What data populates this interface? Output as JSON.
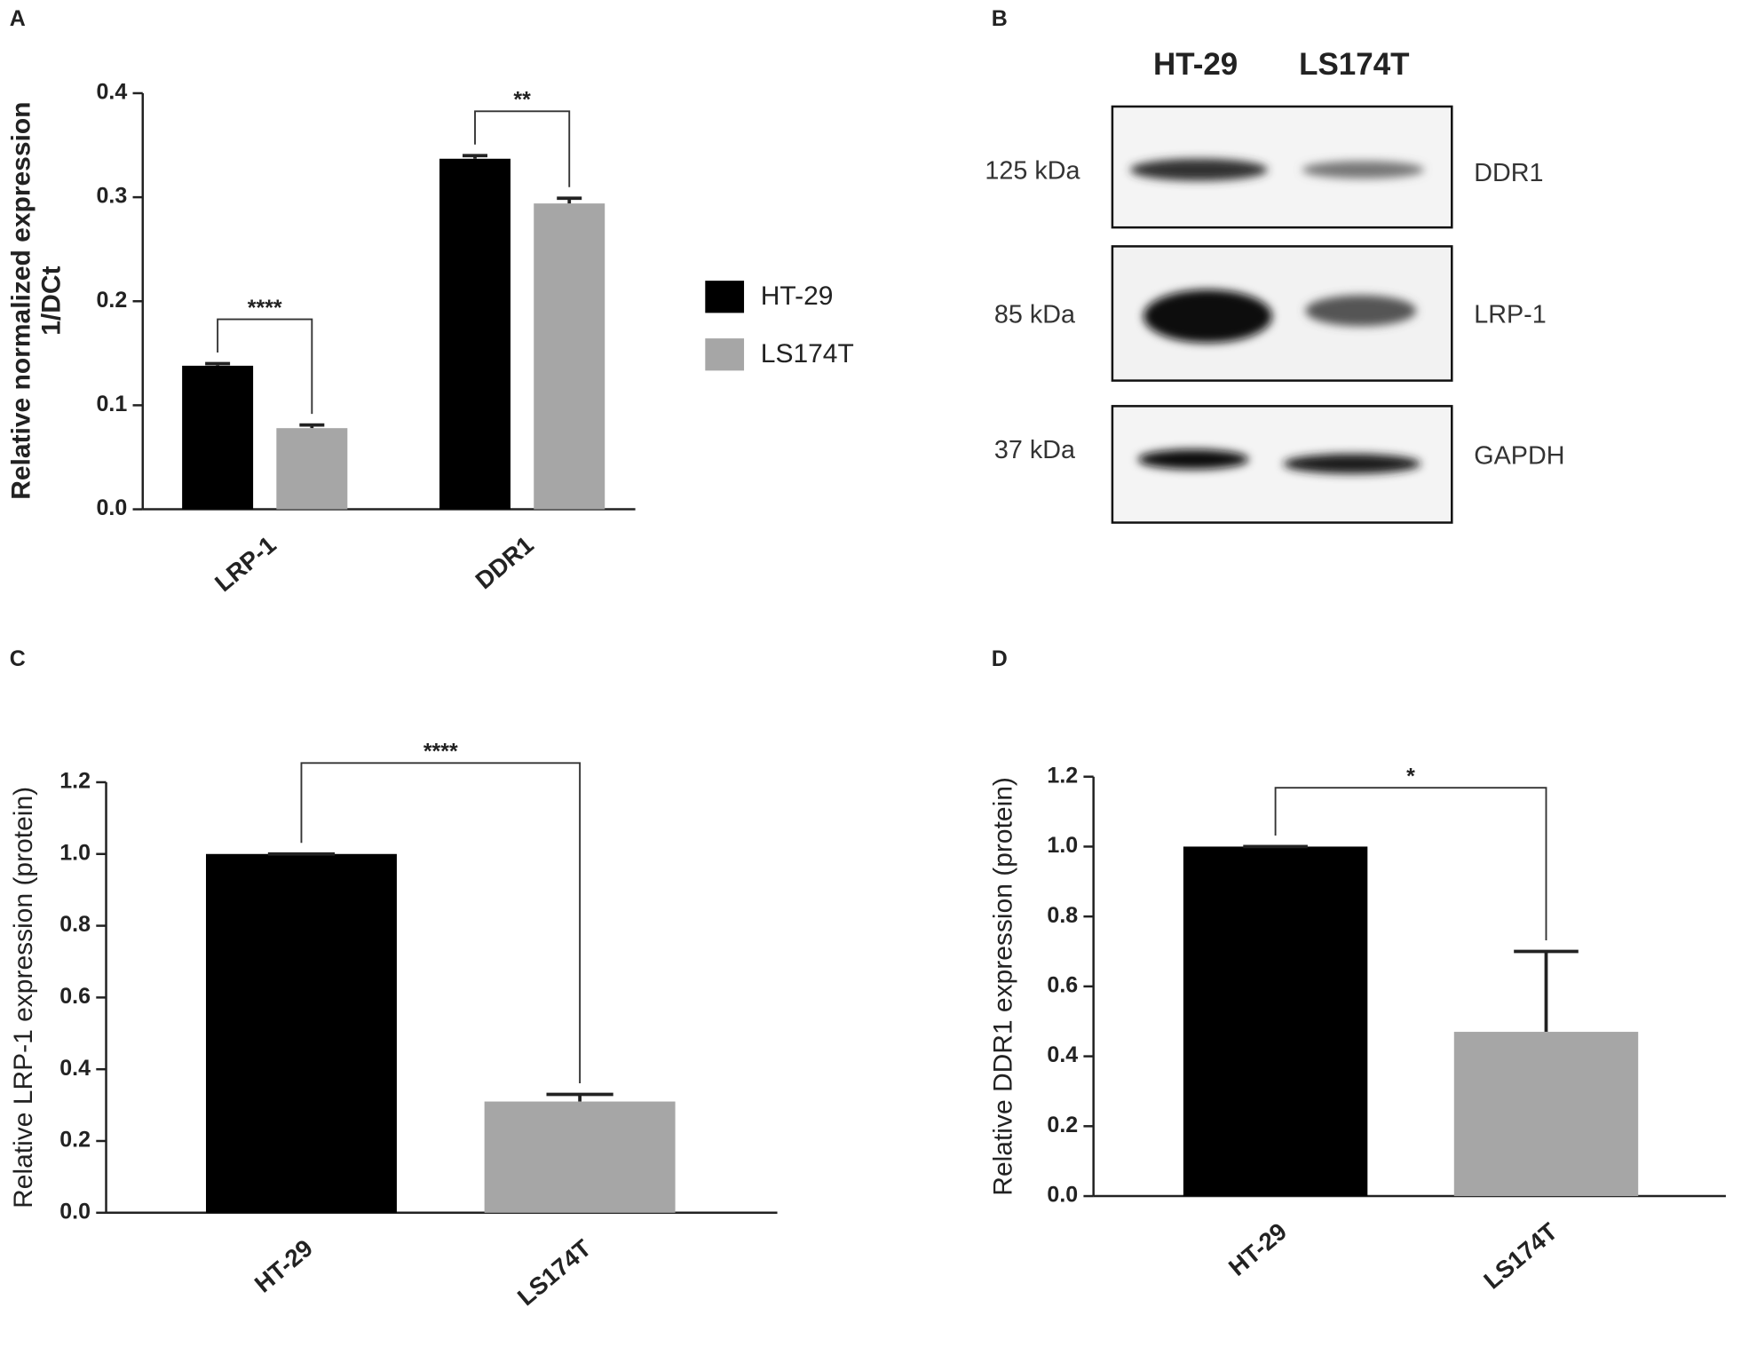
{
  "chart_data": [
    {
      "panel": "A",
      "type": "bar",
      "ylabel": [
        "Relative normalized expression",
        "1/DCt"
      ],
      "categories": [
        "LRP-1",
        "DDR1"
      ],
      "series": [
        {
          "name": "HT-29",
          "color": "#000000",
          "values": [
            0.138,
            0.337
          ],
          "errors": [
            0.002,
            0.003
          ]
        },
        {
          "name": "LS174T",
          "color": "#a6a6a6",
          "values": [
            0.078,
            0.294
          ],
          "errors": [
            0.003,
            0.005
          ]
        }
      ],
      "ylim": [
        0,
        0.4
      ],
      "yticks": [
        {
          "value": 0,
          "label": "0.0"
        },
        0.1,
        0.2,
        0.3,
        0.4
      ],
      "annotations": [
        "****",
        "**"
      ]
    },
    {
      "panel": "C",
      "type": "bar",
      "ylabel": "Relative LRP-1 expression (protein)",
      "categories": [
        "HT-29",
        "LS174T"
      ],
      "values": [
        1.0,
        0.31
      ],
      "errors": [
        0,
        0.02
      ],
      "colors": [
        "#000000",
        "#a6a6a6"
      ],
      "ylim": [
        0,
        1.2
      ],
      "yticks": [
        {
          "value": 0,
          "label": "0.0"
        },
        0.2,
        0.4,
        0.6,
        0.8,
        {
          "value": 1,
          "label": "1.0"
        },
        1.2
      ],
      "annotations": [
        "****"
      ]
    },
    {
      "panel": "D",
      "type": "bar",
      "ylabel": "Relative DDR1 expression (protein)",
      "categories": [
        "HT-29",
        "LS174T"
      ],
      "values": [
        1.0,
        0.47
      ],
      "errors": [
        0,
        0.23
      ],
      "colors": [
        "#000000",
        "#a6a6a6"
      ],
      "ylim": [
        0,
        1.2
      ],
      "yticks": [
        {
          "value": 0,
          "label": "0.0"
        },
        0.2,
        0.4,
        0.6,
        0.8,
        {
          "value": 1,
          "label": "1.0"
        },
        1.2
      ],
      "annotations": [
        "*"
      ]
    }
  ],
  "blot": {
    "panel": "B",
    "lanes": [
      "HT-29",
      "LS174T"
    ],
    "markers": [
      "125 kDa",
      "85 kDa",
      "37 kDa"
    ],
    "proteins": [
      "DDR1",
      "LRP-1",
      "GAPDH"
    ]
  }
}
